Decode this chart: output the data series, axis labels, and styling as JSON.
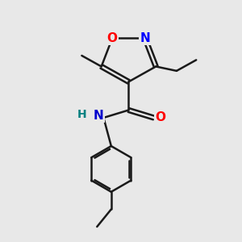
{
  "bg_color": "#e8e8e8",
  "bond_color": "#1a1a1a",
  "bond_width": 1.8,
  "atom_colors": {
    "O": "#ff0000",
    "N_ring": "#0000ff",
    "N_amide": "#0000cd",
    "H": "#008080"
  },
  "font_size_atoms": 11,
  "xlim": [
    0,
    10
  ],
  "ylim": [
    0,
    11
  ]
}
